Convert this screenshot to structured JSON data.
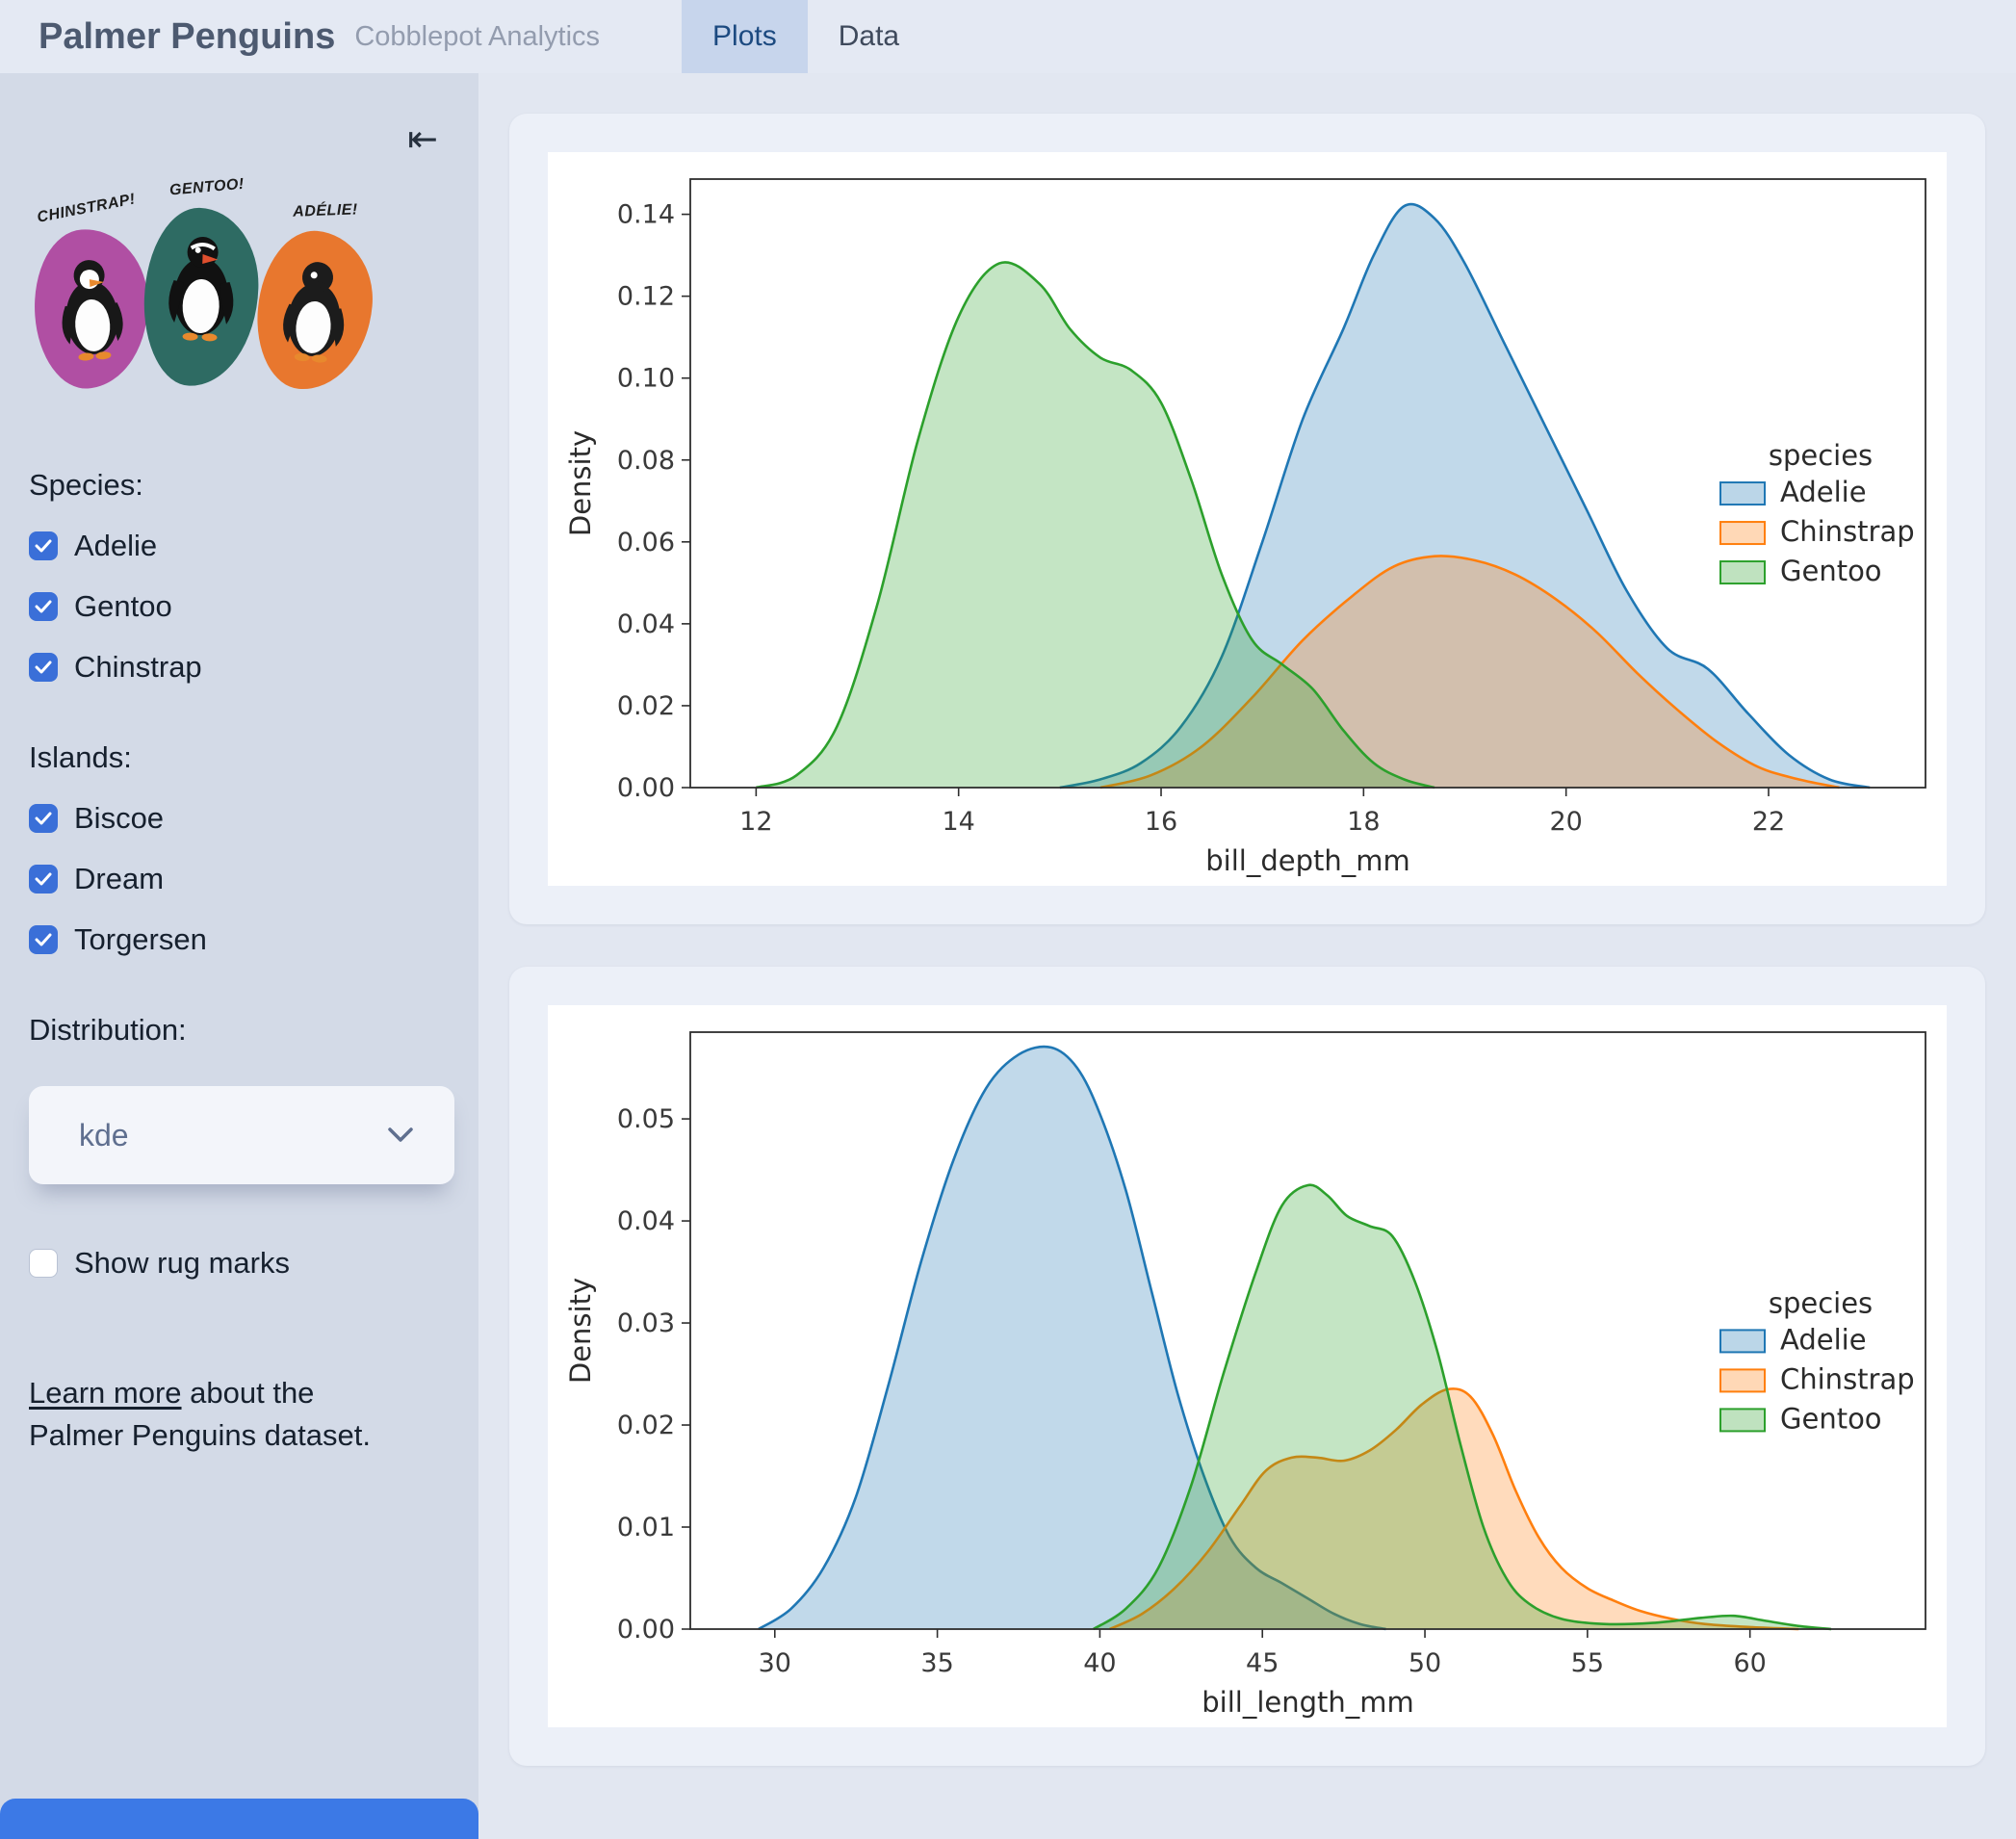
{
  "app": {
    "title": "Palmer Penguins",
    "subtitle": "Cobblepot Analytics",
    "tabs": [
      {
        "label": "Plots",
        "active": true
      },
      {
        "label": "Data",
        "active": false
      }
    ]
  },
  "sidebar": {
    "collapse_icon": "⇤",
    "artwork": {
      "labels": [
        "CHINSTRAP!",
        "GENTOO!",
        "ADÉLIE!"
      ],
      "colors": [
        "#b04fa3",
        "#2e6b63",
        "#e8772e"
      ]
    },
    "species": {
      "label": "Species:",
      "options": [
        {
          "label": "Adelie",
          "checked": true
        },
        {
          "label": "Gentoo",
          "checked": true
        },
        {
          "label": "Chinstrap",
          "checked": true
        }
      ]
    },
    "islands": {
      "label": "Islands:",
      "options": [
        {
          "label": "Biscoe",
          "checked": true
        },
        {
          "label": "Dream",
          "checked": true
        },
        {
          "label": "Torgersen",
          "checked": true
        }
      ]
    },
    "distribution": {
      "label": "Distribution:",
      "value": "kde"
    },
    "rug": {
      "label": "Show rug marks",
      "checked": false
    },
    "learn_more": {
      "link_text": "Learn more",
      "rest_text": " about the Palmer Penguins dataset."
    }
  },
  "theme": {
    "checkbox_color": "#3a6fd8",
    "active_tab_bg": "#c7d5ec",
    "accent_blue": "#3c79e6"
  },
  "chart_data": [
    {
      "type": "area",
      "title": "",
      "xlabel": "bill_depth_mm",
      "ylabel": "Density",
      "xlim": [
        11.35,
        23.55
      ],
      "ylim": [
        0,
        0.1486
      ],
      "xticks": [
        12,
        14,
        16,
        18,
        20,
        22
      ],
      "yticks": [
        0.0,
        0.02,
        0.04,
        0.06,
        0.08,
        0.1,
        0.12,
        0.14
      ],
      "ydecimals": 2,
      "grid": false,
      "legend_title": "species",
      "legend_position": "center right",
      "series": [
        {
          "name": "Adelie",
          "color": "#1f77b4",
          "points": [
            [
              15.0,
              0.0
            ],
            [
              15.4,
              0.002
            ],
            [
              15.8,
              0.006
            ],
            [
              16.2,
              0.015
            ],
            [
              16.6,
              0.032
            ],
            [
              17.0,
              0.06
            ],
            [
              17.4,
              0.09
            ],
            [
              17.8,
              0.112
            ],
            [
              18.1,
              0.13
            ],
            [
              18.4,
              0.142
            ],
            [
              18.7,
              0.139
            ],
            [
              19.0,
              0.128
            ],
            [
              19.4,
              0.108
            ],
            [
              19.8,
              0.088
            ],
            [
              20.2,
              0.068
            ],
            [
              20.6,
              0.048
            ],
            [
              21.0,
              0.034
            ],
            [
              21.4,
              0.029
            ],
            [
              21.8,
              0.018
            ],
            [
              22.2,
              0.008
            ],
            [
              22.6,
              0.002
            ],
            [
              23.0,
              0.0
            ]
          ]
        },
        {
          "name": "Chinstrap",
          "color": "#ff7f0e",
          "points": [
            [
              15.4,
              0.0
            ],
            [
              15.9,
              0.003
            ],
            [
              16.4,
              0.01
            ],
            [
              16.9,
              0.022
            ],
            [
              17.4,
              0.036
            ],
            [
              17.9,
              0.047
            ],
            [
              18.3,
              0.054
            ],
            [
              18.7,
              0.0565
            ],
            [
              19.1,
              0.0555
            ],
            [
              19.5,
              0.052
            ],
            [
              19.9,
              0.046
            ],
            [
              20.3,
              0.038
            ],
            [
              20.7,
              0.028
            ],
            [
              21.1,
              0.019
            ],
            [
              21.5,
              0.011
            ],
            [
              21.9,
              0.005
            ],
            [
              22.3,
              0.002
            ],
            [
              22.7,
              0.0
            ]
          ]
        },
        {
          "name": "Gentoo",
          "color": "#2ca02c",
          "points": [
            [
              12.0,
              0.0
            ],
            [
              12.4,
              0.003
            ],
            [
              12.8,
              0.015
            ],
            [
              13.2,
              0.045
            ],
            [
              13.6,
              0.085
            ],
            [
              14.0,
              0.115
            ],
            [
              14.4,
              0.128
            ],
            [
              14.8,
              0.123
            ],
            [
              15.1,
              0.112
            ],
            [
              15.4,
              0.105
            ],
            [
              15.7,
              0.102
            ],
            [
              16.0,
              0.094
            ],
            [
              16.3,
              0.075
            ],
            [
              16.6,
              0.052
            ],
            [
              16.9,
              0.036
            ],
            [
              17.2,
              0.03
            ],
            [
              17.5,
              0.024
            ],
            [
              17.8,
              0.014
            ],
            [
              18.1,
              0.006
            ],
            [
              18.4,
              0.002
            ],
            [
              18.7,
              0.0
            ]
          ]
        }
      ]
    },
    {
      "type": "area",
      "title": "",
      "xlabel": "bill_length_mm",
      "ylabel": "Density",
      "xlim": [
        27.4,
        65.4
      ],
      "ylim": [
        0,
        0.0585
      ],
      "xticks": [
        30,
        35,
        40,
        45,
        50,
        55,
        60
      ],
      "yticks": [
        0.0,
        0.01,
        0.02,
        0.03,
        0.04,
        0.05
      ],
      "ydecimals": 2,
      "grid": false,
      "legend_title": "species",
      "legend_position": "center right",
      "series": [
        {
          "name": "Adelie",
          "color": "#1f77b4",
          "points": [
            [
              29.5,
              0.0
            ],
            [
              30.5,
              0.002
            ],
            [
              31.5,
              0.006
            ],
            [
              32.5,
              0.013
            ],
            [
              33.5,
              0.024
            ],
            [
              34.5,
              0.036
            ],
            [
              35.5,
              0.046
            ],
            [
              36.5,
              0.053
            ],
            [
              37.5,
              0.0563
            ],
            [
              38.5,
              0.057
            ],
            [
              39.3,
              0.055
            ],
            [
              40.0,
              0.0505
            ],
            [
              40.8,
              0.043
            ],
            [
              41.6,
              0.033
            ],
            [
              42.4,
              0.023
            ],
            [
              43.2,
              0.015
            ],
            [
              44.0,
              0.009
            ],
            [
              44.8,
              0.006
            ],
            [
              45.6,
              0.0045
            ],
            [
              46.4,
              0.003
            ],
            [
              47.2,
              0.0015
            ],
            [
              48.0,
              0.0005
            ],
            [
              48.8,
              0.0
            ]
          ]
        },
        {
          "name": "Chinstrap",
          "color": "#ff7f0e",
          "points": [
            [
              40.3,
              0.0
            ],
            [
              41.3,
              0.0015
            ],
            [
              42.3,
              0.004
            ],
            [
              43.3,
              0.0075
            ],
            [
              44.3,
              0.012
            ],
            [
              45.1,
              0.0155
            ],
            [
              45.9,
              0.0168
            ],
            [
              46.7,
              0.0168
            ],
            [
              47.5,
              0.0165
            ],
            [
              48.3,
              0.0175
            ],
            [
              49.1,
              0.0195
            ],
            [
              49.9,
              0.022
            ],
            [
              50.7,
              0.0235
            ],
            [
              51.4,
              0.0228
            ],
            [
              52.1,
              0.019
            ],
            [
              52.8,
              0.0135
            ],
            [
              53.5,
              0.009
            ],
            [
              54.2,
              0.006
            ],
            [
              55.0,
              0.004
            ],
            [
              55.8,
              0.0028
            ],
            [
              56.6,
              0.0018
            ],
            [
              57.6,
              0.001
            ],
            [
              58.6,
              0.0005
            ],
            [
              60.0,
              0.0002
            ],
            [
              61.5,
              0.0
            ]
          ]
        },
        {
          "name": "Gentoo",
          "color": "#2ca02c",
          "points": [
            [
              39.8,
              0.0
            ],
            [
              40.8,
              0.002
            ],
            [
              41.8,
              0.006
            ],
            [
              42.8,
              0.014
            ],
            [
              43.8,
              0.025
            ],
            [
              44.8,
              0.035
            ],
            [
              45.6,
              0.0415
            ],
            [
              46.4,
              0.0435
            ],
            [
              47.0,
              0.0425
            ],
            [
              47.6,
              0.0405
            ],
            [
              48.3,
              0.0395
            ],
            [
              49.0,
              0.0385
            ],
            [
              49.7,
              0.034
            ],
            [
              50.4,
              0.027
            ],
            [
              51.1,
              0.018
            ],
            [
              51.8,
              0.01
            ],
            [
              52.5,
              0.005
            ],
            [
              53.2,
              0.0025
            ],
            [
              54.2,
              0.001
            ],
            [
              55.5,
              0.0005
            ],
            [
              57.0,
              0.0006
            ],
            [
              58.5,
              0.0011
            ],
            [
              59.5,
              0.0013
            ],
            [
              60.5,
              0.0008
            ],
            [
              61.5,
              0.0003
            ],
            [
              62.5,
              0.0
            ]
          ]
        }
      ]
    }
  ]
}
